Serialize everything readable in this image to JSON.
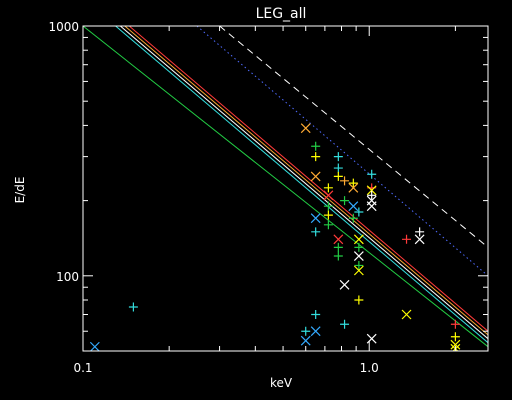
{
  "chart_data": {
    "type": "scatter",
    "title": "LEG_all",
    "xlabel": "keV",
    "ylabel": "E/dE",
    "xscale": "log",
    "yscale": "log",
    "xlim": [
      0.1,
      2.6
    ],
    "ylim": [
      50,
      1000
    ],
    "x_ticks": [
      {
        "value": 0.1,
        "label": "0.1"
      },
      {
        "value": 1.0,
        "label": "1.0"
      }
    ],
    "y_ticks": [
      {
        "value": 100,
        "label": "100"
      },
      {
        "value": 1000,
        "label": "1000"
      }
    ],
    "grid": false,
    "background": "#000000",
    "axis_color": "#ffffff",
    "lines": [
      {
        "style": "dashed",
        "color": "#ffffff",
        "points": [
          [
            0.3,
            1000
          ],
          [
            2.6,
            130
          ]
        ]
      },
      {
        "style": "dotted",
        "color": "#4f6bff",
        "points": [
          [
            0.25,
            1000
          ],
          [
            2.6,
            100
          ]
        ]
      },
      {
        "style": "solid",
        "color": "#ff3a3a",
        "points": [
          [
            0.145,
            1000
          ],
          [
            2.6,
            60
          ]
        ]
      },
      {
        "style": "solid",
        "color": "#ffaa33",
        "points": [
          [
            0.14,
            1000
          ],
          [
            2.6,
            58
          ]
        ]
      },
      {
        "style": "solid",
        "color": "#ffffff",
        "points": [
          [
            0.135,
            1000
          ],
          [
            2.6,
            56
          ]
        ]
      },
      {
        "style": "solid",
        "color": "#33dddd",
        "points": [
          [
            0.13,
            1000
          ],
          [
            2.6,
            54
          ]
        ]
      },
      {
        "style": "solid",
        "color": "#22cc44",
        "points": [
          [
            0.1,
            1000
          ],
          [
            2.6,
            52
          ]
        ]
      }
    ],
    "markers": [
      {
        "x": 0.11,
        "y": 52,
        "symbol": "x",
        "color": "#33aaff"
      },
      {
        "x": 0.15,
        "y": 75,
        "symbol": "+",
        "color": "#33dddd"
      },
      {
        "x": 0.6,
        "y": 390,
        "symbol": "x",
        "color": "#ffaa33"
      },
      {
        "x": 0.65,
        "y": 330,
        "symbol": "+",
        "color": "#22cc44"
      },
      {
        "x": 0.65,
        "y": 300,
        "symbol": "+",
        "color": "#ffff00"
      },
      {
        "x": 0.65,
        "y": 250,
        "symbol": "x",
        "color": "#ffaa33"
      },
      {
        "x": 0.65,
        "y": 170,
        "symbol": "x",
        "color": "#33aaff"
      },
      {
        "x": 0.65,
        "y": 150,
        "symbol": "+",
        "color": "#33dddd"
      },
      {
        "x": 0.6,
        "y": 60,
        "symbol": "+",
        "color": "#33dddd"
      },
      {
        "x": 0.6,
        "y": 55,
        "symbol": "x",
        "color": "#33aaff"
      },
      {
        "x": 0.65,
        "y": 70,
        "symbol": "+",
        "color": "#33dddd"
      },
      {
        "x": 0.65,
        "y": 60,
        "symbol": "x",
        "color": "#33aaff"
      },
      {
        "x": 0.72,
        "y": 225,
        "symbol": "+",
        "color": "#ffff00"
      },
      {
        "x": 0.72,
        "y": 210,
        "symbol": "x",
        "color": "#ff3a3a"
      },
      {
        "x": 0.72,
        "y": 190,
        "symbol": "+",
        "color": "#22cc44"
      },
      {
        "x": 0.72,
        "y": 175,
        "symbol": "+",
        "color": "#ffff00"
      },
      {
        "x": 0.72,
        "y": 160,
        "symbol": "+",
        "color": "#22cc44"
      },
      {
        "x": 0.78,
        "y": 300,
        "symbol": "+",
        "color": "#33dddd"
      },
      {
        "x": 0.78,
        "y": 270,
        "symbol": "+",
        "color": "#33dddd"
      },
      {
        "x": 0.78,
        "y": 250,
        "symbol": "+",
        "color": "#ffff00"
      },
      {
        "x": 0.78,
        "y": 140,
        "symbol": "x",
        "color": "#ff3a3a"
      },
      {
        "x": 0.78,
        "y": 130,
        "symbol": "+",
        "color": "#22cc44"
      },
      {
        "x": 0.78,
        "y": 120,
        "symbol": "+",
        "color": "#22cc44"
      },
      {
        "x": 0.82,
        "y": 240,
        "symbol": "+",
        "color": "#ffaa33"
      },
      {
        "x": 0.82,
        "y": 200,
        "symbol": "+",
        "color": "#22cc44"
      },
      {
        "x": 0.82,
        "y": 92,
        "symbol": "x",
        "color": "#ffffff"
      },
      {
        "x": 0.82,
        "y": 64,
        "symbol": "+",
        "color": "#33dddd"
      },
      {
        "x": 0.88,
        "y": 235,
        "symbol": "+",
        "color": "#ffff00"
      },
      {
        "x": 0.88,
        "y": 225,
        "symbol": "x",
        "color": "#ffaa33"
      },
      {
        "x": 0.88,
        "y": 190,
        "symbol": "x",
        "color": "#33aaff"
      },
      {
        "x": 0.88,
        "y": 170,
        "symbol": "+",
        "color": "#22cc44"
      },
      {
        "x": 0.92,
        "y": 180,
        "symbol": "+",
        "color": "#33dddd"
      },
      {
        "x": 0.92,
        "y": 140,
        "symbol": "x",
        "color": "#ffff00"
      },
      {
        "x": 0.92,
        "y": 130,
        "symbol": "+",
        "color": "#22cc44"
      },
      {
        "x": 0.92,
        "y": 120,
        "symbol": "x",
        "color": "#ffffff"
      },
      {
        "x": 0.92,
        "y": 110,
        "symbol": "+",
        "color": "#22cc44"
      },
      {
        "x": 0.92,
        "y": 105,
        "symbol": "x",
        "color": "#ffff00"
      },
      {
        "x": 0.92,
        "y": 80,
        "symbol": "+",
        "color": "#ffff00"
      },
      {
        "x": 1.02,
        "y": 255,
        "symbol": "+",
        "color": "#33dddd"
      },
      {
        "x": 1.02,
        "y": 225,
        "symbol": "+",
        "color": "#ff3a3a"
      },
      {
        "x": 1.02,
        "y": 220,
        "symbol": "x",
        "color": "#ffff00"
      },
      {
        "x": 1.02,
        "y": 210,
        "symbol": "+",
        "color": "#ffffff"
      },
      {
        "x": 1.02,
        "y": 200,
        "symbol": "x",
        "color": "#ffffff"
      },
      {
        "x": 1.02,
        "y": 190,
        "symbol": "x",
        "color": "#ffffff"
      },
      {
        "x": 1.02,
        "y": 56,
        "symbol": "x",
        "color": "#ffffff"
      },
      {
        "x": 1.35,
        "y": 140,
        "symbol": "+",
        "color": "#ff3a3a"
      },
      {
        "x": 1.35,
        "y": 70,
        "symbol": "x",
        "color": "#ffff00"
      },
      {
        "x": 1.5,
        "y": 150,
        "symbol": "+",
        "color": "#ffffff"
      },
      {
        "x": 1.5,
        "y": 140,
        "symbol": "x",
        "color": "#ffffff"
      },
      {
        "x": 2.0,
        "y": 64,
        "symbol": "+",
        "color": "#ff3a3a"
      },
      {
        "x": 2.0,
        "y": 57,
        "symbol": "+",
        "color": "#ffff00"
      },
      {
        "x": 2.0,
        "y": 53,
        "symbol": "x",
        "color": "#ffff00"
      },
      {
        "x": 2.0,
        "y": 51,
        "symbol": "x",
        "color": "#ffff00"
      }
    ]
  }
}
